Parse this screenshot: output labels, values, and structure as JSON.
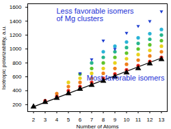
{
  "chart_data": {
    "type": "scatter",
    "x_label": "Number of Atoms",
    "y_label": "Isotropic polarizability, a.u.",
    "xlim": [
      1.5,
      13.5
    ],
    "xticks": [
      2,
      3,
      4,
      5,
      6,
      7,
      8,
      9,
      10,
      11,
      12,
      13
    ],
    "ylim": [
      100,
      1650
    ],
    "yticks": [
      200,
      400,
      600,
      800,
      1000,
      1200,
      1400,
      1600
    ],
    "grid": false,
    "series": [
      {
        "type": "line",
        "color": "#000000",
        "line_style": "solid",
        "x": [
          2,
          13
        ],
        "values": [
          170,
          870
        ]
      },
      {
        "type": "scatter",
        "marker": "circle",
        "color": "#e8251c",
        "x": [
          3,
          4,
          5,
          6,
          7,
          8,
          9,
          10,
          11,
          12,
          13
        ],
        "values": [
          255,
          320,
          400,
          460,
          520,
          580,
          640,
          700,
          760,
          820,
          880
        ]
      },
      {
        "type": "scatter",
        "marker": "circle",
        "color": "#f07f1a",
        "x": [
          4,
          5,
          6,
          7,
          8,
          9,
          10,
          11,
          12,
          13
        ],
        "values": [
          360,
          460,
          520,
          580,
          650,
          720,
          780,
          840,
          900,
          960
        ]
      },
      {
        "type": "scatter",
        "marker": "circle",
        "color": "#e9d21c",
        "x": [
          5,
          6,
          7,
          8,
          9,
          10,
          11,
          12,
          13
        ],
        "values": [
          520,
          580,
          650,
          720,
          800,
          860,
          920,
          980,
          1040
        ]
      },
      {
        "type": "scatter",
        "marker": "circle",
        "color": "#5fc32b",
        "x": [
          6,
          7,
          8,
          9,
          10,
          11,
          12,
          13
        ],
        "values": [
          640,
          720,
          800,
          880,
          940,
          1000,
          1060,
          1120
        ]
      },
      {
        "type": "scatter",
        "marker": "circle",
        "color": "#26b58c",
        "x": [
          7,
          8,
          9,
          10,
          11,
          12,
          13
        ],
        "values": [
          800,
          880,
          960,
          1020,
          1080,
          1140,
          1200
        ]
      },
      {
        "type": "scatter",
        "marker": "circle",
        "color": "#2ab3d6",
        "x": [
          8,
          9,
          10,
          11,
          12,
          13
        ],
        "values": [
          960,
          1040,
          1100,
          1160,
          1220,
          1280
        ]
      },
      {
        "type": "scatter",
        "marker": "triangle-down",
        "color": "#1f3fd0",
        "x": [
          6,
          7,
          8,
          9,
          10,
          11,
          12,
          13
        ],
        "values": [
          650,
          850,
          1120,
          1000,
          1230,
          1330,
          1400,
          1540
        ]
      },
      {
        "type": "scatter",
        "marker": "triangle",
        "color": "#000000",
        "x": [
          2,
          3,
          4,
          5,
          6,
          7,
          8,
          9,
          10,
          11,
          12,
          13
        ],
        "values": [
          170,
          235,
          295,
          360,
          425,
          480,
          540,
          600,
          660,
          720,
          790,
          850
        ]
      }
    ],
    "annotations": [
      {
        "text": "Less favorable isomers\nof Mg clusters",
        "color": "#1c2fd6"
      },
      {
        "text": "Most favorable isomers",
        "color": "#1c2fd6"
      }
    ]
  }
}
